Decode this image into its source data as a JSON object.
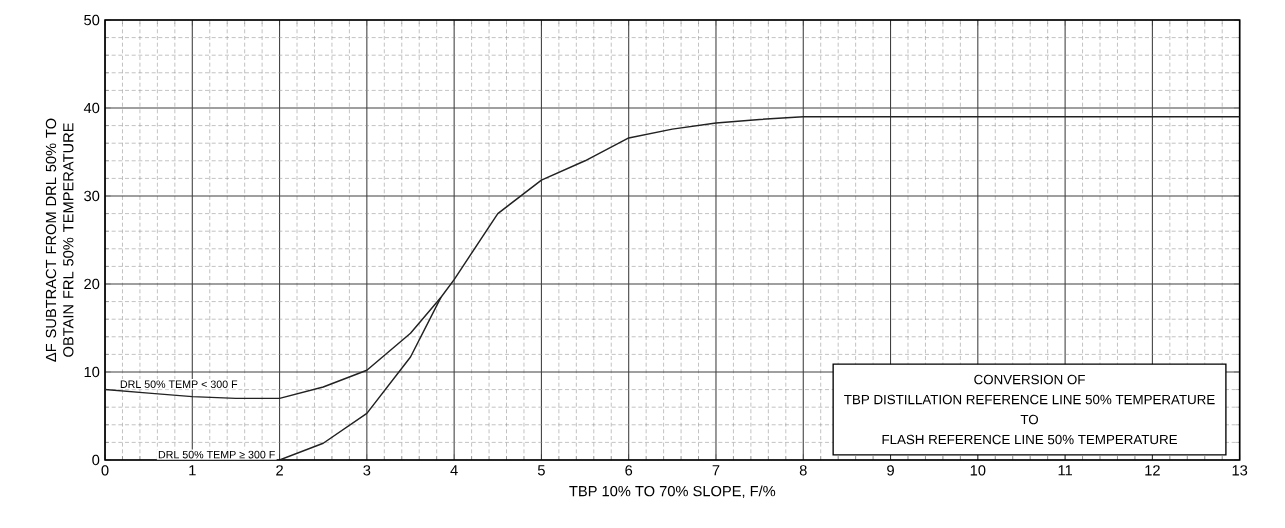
{
  "chart_data": {
    "type": "line",
    "xlabel": "TBP 10% TO 70% SLOPE, F/%",
    "ylabel": "ΔF SUBTRACT FROM DRL 50% TO OBTAIN FRL 50% TEMPERATURE",
    "xlim": [
      0,
      13
    ],
    "xticks": [
      0,
      1,
      2,
      3,
      4,
      5,
      6,
      7,
      8,
      9,
      10,
      11,
      12,
      13
    ],
    "ylim": [
      0,
      50
    ],
    "yticks": [
      0,
      10,
      20,
      30,
      40,
      50
    ],
    "grid": true,
    "legend": false,
    "marker": "none",
    "line_style": "solid",
    "annotations": [
      "CONVERSION OF",
      "TBP DISTILLATION REFERENCE LINE 50% TEMPERATURE",
      "TO",
      "FLASH REFERENCE LINE 50% TEMPERATURE"
    ],
    "series": [
      {
        "name": "DRL 50% TEMP < 300 F",
        "color": "#222222",
        "x": [
          0,
          0.5,
          1,
          1.5,
          2,
          2.5,
          3,
          3.5,
          3.85,
          4,
          4.5,
          5,
          5.5,
          6,
          6.5,
          7,
          7.5,
          8,
          9,
          10,
          11,
          12,
          13
        ],
        "values": [
          8,
          7.6,
          7.2,
          7,
          7,
          8.3,
          10.2,
          14.4,
          18.5,
          20.5,
          28,
          31.8,
          34,
          36.6,
          37.6,
          38.3,
          38.7,
          39,
          39,
          39,
          39,
          39,
          39
        ]
      },
      {
        "name": "DRL 50% TEMP ≥ 300 F",
        "color": "#222222",
        "x": [
          2,
          2.5,
          3,
          3.5,
          3.85
        ],
        "values": [
          0,
          1.9,
          5.3,
          11.7,
          18.5
        ]
      }
    ]
  }
}
